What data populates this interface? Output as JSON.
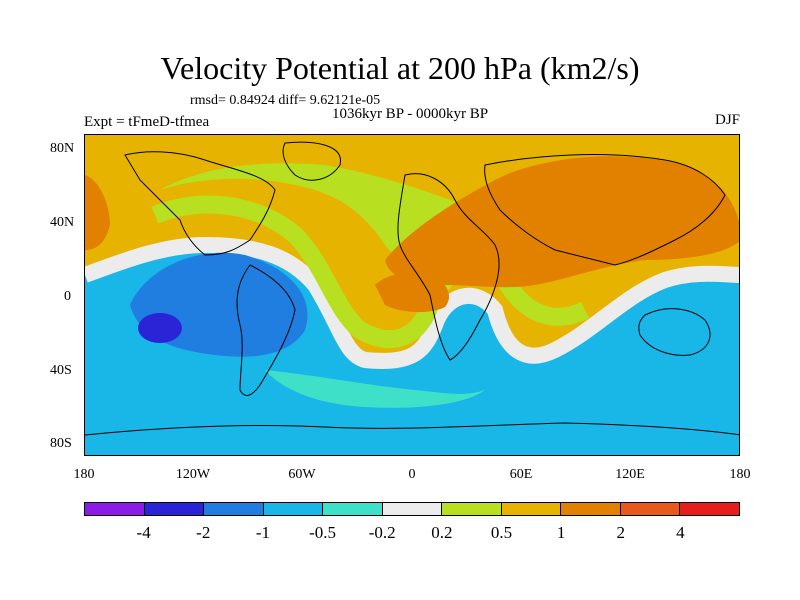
{
  "title": "Velocity Potential at 200 hPa (km2/s)",
  "stats": "rmsd= 0.84924 diff= 9.62121e-05",
  "period": "1036kyr BP - 0000kyr BP",
  "experiment": "Expt = tFmeD-tfmea",
  "season": "DJF",
  "y_axis_labels": [
    "80N",
    "40N",
    "0",
    "40S",
    "80S"
  ],
  "x_axis_labels": [
    "180",
    "120W",
    "60W",
    "0",
    "60E",
    "120E",
    "180"
  ],
  "legend": {
    "colors": [
      "#8a1ce6",
      "#2a24d6",
      "#1f7ee0",
      "#19b6e8",
      "#3fe0c8",
      "#ececec",
      "#b8e020",
      "#e6b400",
      "#e28000",
      "#e85a1c",
      "#e61e1e"
    ],
    "labels": [
      "-4",
      "-2",
      "-1",
      "-0.5",
      "-0.2",
      "0.2",
      "0.5",
      "1",
      "2",
      "4"
    ]
  },
  "map_colors": {
    "ocean_default": "#19b6e8",
    "neg_strong": "#1f7ee0",
    "neg_min": "#2a24d6",
    "neg_weak": "#3fe0c8",
    "neutral": "#ececec",
    "pos_weak": "#b8e020",
    "pos_mid": "#e6b400",
    "pos_high": "#e28000",
    "coast": "#000000"
  }
}
